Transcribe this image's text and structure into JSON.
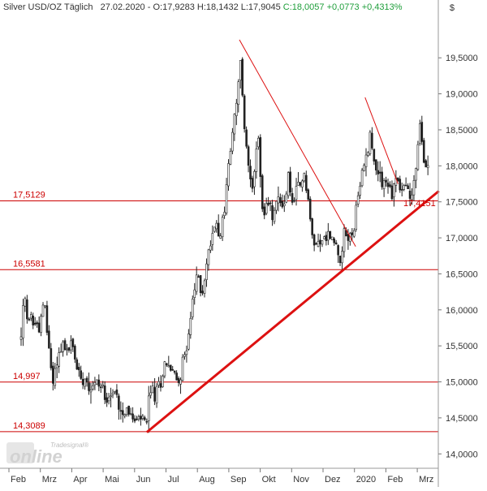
{
  "header": {
    "instrument": "Silver USD/OZ Täglich",
    "date": "27.02.2020",
    "open": "O:17,9283",
    "high": "H:18,1432",
    "low": "L:17,9045",
    "close": "C:18,0057",
    "change": "+0,0773",
    "change_pct": "+0,4313%",
    "currency_symbol": "$"
  },
  "colors": {
    "candle": "#222222",
    "hline": "#cc0000",
    "trend": "#dd1111",
    "grid": "#dddddd",
    "positive": "#1e9e3a"
  },
  "watermark": {
    "brand_small": "Tradesignal®",
    "brand_big": "online"
  },
  "chart_data": {
    "type": "candlestick",
    "title": "Silver USD/OZ Täglich",
    "ylim": [
      13.8,
      20.1
    ],
    "yticks": [
      {
        "value": 14.0,
        "label": "14,0000"
      },
      {
        "value": 14.5,
        "label": "14,5000"
      },
      {
        "value": 15.0,
        "label": "15,0000"
      },
      {
        "value": 15.5,
        "label": "15,5000"
      },
      {
        "value": 16.0,
        "label": "16,0000"
      },
      {
        "value": 16.5,
        "label": "16,5000"
      },
      {
        "value": 17.0,
        "label": "17,0000"
      },
      {
        "value": 17.5,
        "label": "17,5000"
      },
      {
        "value": 18.0,
        "label": "18,0000"
      },
      {
        "value": 18.5,
        "label": "18,5000"
      },
      {
        "value": 19.0,
        "label": "19,0000"
      },
      {
        "value": 19.5,
        "label": "19,5000"
      }
    ],
    "months": [
      "Feb",
      "Mrz",
      "Apr",
      "Mai",
      "Jun",
      "Jul",
      "Aug",
      "Sep",
      "Okt",
      "Nov",
      "Dez",
      "2020",
      "Feb",
      "Mrz"
    ],
    "horizontal_levels": [
      {
        "value": 17.5129,
        "label": "17,5129"
      },
      {
        "value": 16.5581,
        "label": "16,5581"
      },
      {
        "value": 14.997,
        "label": "14,997"
      },
      {
        "value": 14.3089,
        "label": "14,3089"
      }
    ],
    "trend_label": {
      "value": 17.4151,
      "label": "17,4151"
    },
    "trendlines": [
      {
        "name": "support",
        "from": {
          "month": 4.0,
          "value": 14.3
        },
        "to": {
          "month": 13.3,
          "value": 17.65
        },
        "bold": true
      },
      {
        "name": "resistance-1",
        "from": {
          "month": 6.95,
          "value": 19.75
        },
        "to": {
          "month": 10.65,
          "value": 16.88
        },
        "bold": false
      },
      {
        "name": "resistance-2",
        "from": {
          "month": 10.95,
          "value": 18.95
        },
        "to": {
          "month": 12.0,
          "value": 17.75
        },
        "bold": false
      }
    ],
    "price_path": [
      [
        0.0,
        15.6
      ],
      [
        0.1,
        16.2
      ],
      [
        0.2,
        15.8
      ],
      [
        0.35,
        15.9
      ],
      [
        0.5,
        15.75
      ],
      [
        0.6,
        15.8
      ],
      [
        0.75,
        16.1
      ],
      [
        0.85,
        15.6
      ],
      [
        1.0,
        15.0
      ],
      [
        1.15,
        15.3
      ],
      [
        1.3,
        15.55
      ],
      [
        1.45,
        15.4
      ],
      [
        1.6,
        15.55
      ],
      [
        1.75,
        15.25
      ],
      [
        1.9,
        15.05
      ],
      [
        2.0,
        15.1
      ],
      [
        2.2,
        14.95
      ],
      [
        2.4,
        15.0
      ],
      [
        2.6,
        14.9
      ],
      [
        2.8,
        14.8
      ],
      [
        3.0,
        14.85
      ],
      [
        3.2,
        14.6
      ],
      [
        3.4,
        14.65
      ],
      [
        3.55,
        14.45
      ],
      [
        3.7,
        14.45
      ],
      [
        3.85,
        14.5
      ],
      [
        4.0,
        14.4
      ],
      [
        4.1,
        14.95
      ],
      [
        4.25,
        14.8
      ],
      [
        4.4,
        14.95
      ],
      [
        4.6,
        15.3
      ],
      [
        4.8,
        15.15
      ],
      [
        5.0,
        15.0
      ],
      [
        5.15,
        15.25
      ],
      [
        5.3,
        15.6
      ],
      [
        5.45,
        16.05
      ],
      [
        5.6,
        16.5
      ],
      [
        5.75,
        16.2
      ],
      [
        5.9,
        16.6
      ],
      [
        6.05,
        17.0
      ],
      [
        6.2,
        17.25
      ],
      [
        6.35,
        17.05
      ],
      [
        6.5,
        17.5
      ],
      [
        6.6,
        18.0
      ],
      [
        6.75,
        18.5
      ],
      [
        6.9,
        19.0
      ],
      [
        7.0,
        19.5
      ],
      [
        7.1,
        18.5
      ],
      [
        7.25,
        18.0
      ],
      [
        7.4,
        17.7
      ],
      [
        7.55,
        18.45
      ],
      [
        7.7,
        17.2
      ],
      [
        7.85,
        17.5
      ],
      [
        8.0,
        17.3
      ],
      [
        8.2,
        17.55
      ],
      [
        8.4,
        17.45
      ],
      [
        8.5,
        17.9
      ],
      [
        8.65,
        17.4
      ],
      [
        8.8,
        17.7
      ],
      [
        8.95,
        17.75
      ],
      [
        9.0,
        17.95
      ],
      [
        9.15,
        17.5
      ],
      [
        9.3,
        16.85
      ],
      [
        9.45,
        17.0
      ],
      [
        9.6,
        16.95
      ],
      [
        9.8,
        17.05
      ],
      [
        10.0,
        16.9
      ],
      [
        10.15,
        16.75
      ],
      [
        10.3,
        17.05
      ],
      [
        10.45,
        17.0
      ],
      [
        10.6,
        17.15
      ],
      [
        10.75,
        17.6
      ],
      [
        10.9,
        18.05
      ],
      [
        11.0,
        18.1
      ],
      [
        11.1,
        18.5
      ],
      [
        11.2,
        18.1
      ],
      [
        11.35,
        17.95
      ],
      [
        11.5,
        17.8
      ],
      [
        11.65,
        17.75
      ],
      [
        11.8,
        17.6
      ],
      [
        11.95,
        17.85
      ],
      [
        12.1,
        17.65
      ],
      [
        12.25,
        17.75
      ],
      [
        12.4,
        17.5
      ],
      [
        12.5,
        17.8
      ],
      [
        12.6,
        18.05
      ],
      [
        12.7,
        18.6
      ],
      [
        12.75,
        18.35
      ],
      [
        12.85,
        18.0
      ],
      [
        12.95,
        17.95
      ]
    ],
    "last_close": 18.0057,
    "grid": false
  }
}
